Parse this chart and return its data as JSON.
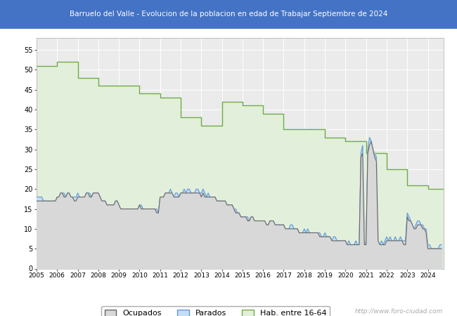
{
  "title": "Barruelo del Valle - Evolucion de la poblacion en edad de Trabajar Septiembre de 2024",
  "title_bg": "#4472c4",
  "title_color": "#ffffff",
  "ylim": [
    0,
    58
  ],
  "yticks": [
    0,
    5,
    10,
    15,
    20,
    25,
    30,
    35,
    40,
    45,
    50,
    55
  ],
  "footer_text": "http://www.foro-ciudad.com",
  "legend_labels": [
    "Ocupados",
    "Parados",
    "Hab. entre 16-64"
  ],
  "plot_bg": "#ebebeb",
  "grid_color": "#ffffff",
  "years": [
    2005,
    2006,
    2007,
    2008,
    2009,
    2010,
    2011,
    2012,
    2013,
    2014,
    2015,
    2016,
    2017,
    2018,
    2019,
    2020,
    2021,
    2022,
    2023,
    2024
  ],
  "hab_values": [
    51,
    52,
    48,
    46,
    46,
    44,
    43,
    38,
    36,
    42,
    41,
    39,
    35,
    35,
    33,
    32,
    29,
    25,
    21,
    20
  ],
  "ocupados_monthly": [
    17,
    17,
    17,
    17,
    17,
    17,
    17,
    17,
    17,
    17,
    17,
    17,
    18,
    18,
    19,
    19,
    18,
    18,
    19,
    19,
    18,
    18,
    17,
    17,
    18,
    18,
    18,
    18,
    18,
    19,
    19,
    18,
    18,
    19,
    19,
    19,
    19,
    18,
    17,
    17,
    17,
    16,
    16,
    16,
    16,
    16,
    17,
    17,
    16,
    15,
    15,
    15,
    15,
    15,
    15,
    15,
    15,
    15,
    15,
    15,
    16,
    15,
    15,
    15,
    15,
    15,
    15,
    15,
    15,
    15,
    14,
    14,
    18,
    18,
    18,
    19,
    19,
    19,
    19,
    19,
    18,
    18,
    18,
    18,
    19,
    19,
    19,
    19,
    19,
    19,
    19,
    19,
    19,
    19,
    19,
    19,
    18,
    19,
    18,
    18,
    18,
    18,
    18,
    18,
    18,
    17,
    17,
    17,
    17,
    17,
    17,
    16,
    16,
    16,
    16,
    15,
    14,
    14,
    14,
    13,
    13,
    13,
    13,
    12,
    12,
    13,
    13,
    12,
    12,
    12,
    12,
    12,
    12,
    12,
    11,
    11,
    12,
    12,
    12,
    11,
    11,
    11,
    11,
    11,
    11,
    10,
    10,
    10,
    10,
    10,
    10,
    10,
    10,
    9,
    9,
    9,
    9,
    9,
    9,
    9,
    9,
    9,
    9,
    9,
    9,
    8,
    8,
    8,
    8,
    8,
    8,
    8,
    7,
    7,
    7,
    7,
    7,
    7,
    7,
    7,
    7,
    6,
    6,
    6,
    6,
    6,
    6,
    6,
    6,
    28,
    29,
    6,
    6,
    29,
    31,
    32,
    30,
    28,
    27,
    7,
    6,
    6,
    6,
    6,
    7,
    7,
    7,
    7,
    7,
    7,
    7,
    7,
    7,
    7,
    6,
    6,
    13,
    12,
    12,
    11,
    10,
    10,
    11,
    11,
    11,
    10,
    10,
    9,
    5,
    5,
    5,
    5,
    5,
    5,
    5,
    5,
    5
  ],
  "parados_monthly": [
    18,
    18,
    18,
    18,
    17,
    17,
    17,
    17,
    17,
    17,
    17,
    17,
    18,
    18,
    19,
    19,
    19,
    18,
    19,
    19,
    18,
    18,
    18,
    18,
    19,
    18,
    18,
    18,
    18,
    19,
    19,
    19,
    18,
    19,
    19,
    19,
    19,
    18,
    17,
    17,
    17,
    16,
    16,
    16,
    16,
    16,
    17,
    17,
    16,
    15,
    15,
    15,
    15,
    15,
    15,
    15,
    15,
    15,
    15,
    15,
    16,
    16,
    15,
    15,
    15,
    15,
    15,
    15,
    15,
    15,
    15,
    14,
    18,
    18,
    18,
    19,
    19,
    19,
    20,
    19,
    18,
    19,
    19,
    18,
    19,
    19,
    20,
    19,
    20,
    20,
    19,
    19,
    19,
    20,
    20,
    19,
    19,
    20,
    19,
    18,
    19,
    18,
    18,
    18,
    18,
    17,
    17,
    17,
    17,
    17,
    17,
    16,
    16,
    16,
    16,
    15,
    15,
    14,
    14,
    13,
    13,
    13,
    13,
    13,
    12,
    13,
    13,
    12,
    12,
    12,
    12,
    12,
    12,
    12,
    11,
    11,
    12,
    12,
    12,
    11,
    11,
    11,
    11,
    11,
    11,
    10,
    10,
    10,
    11,
    11,
    10,
    10,
    10,
    9,
    9,
    9,
    10,
    9,
    10,
    9,
    9,
    9,
    9,
    9,
    9,
    9,
    8,
    8,
    9,
    8,
    8,
    8,
    7,
    8,
    8,
    7,
    7,
    7,
    7,
    7,
    7,
    6,
    7,
    6,
    6,
    6,
    7,
    6,
    6,
    29,
    31,
    6,
    7,
    30,
    33,
    32,
    30,
    29,
    28,
    7,
    6,
    7,
    6,
    7,
    8,
    7,
    8,
    7,
    7,
    8,
    7,
    7,
    8,
    7,
    7,
    7,
    14,
    13,
    12,
    11,
    10,
    11,
    12,
    12,
    11,
    11,
    10,
    10,
    6,
    6,
    5,
    5,
    5,
    5,
    5,
    6,
    6
  ],
  "ocupados_color": "#666666",
  "ocupados_fill": "#d8d8d8",
  "parados_color": "#5b9bd5",
  "parados_fill": "#c5ddf5",
  "hab_color": "#70ad47",
  "hab_fill": "#e2efda"
}
